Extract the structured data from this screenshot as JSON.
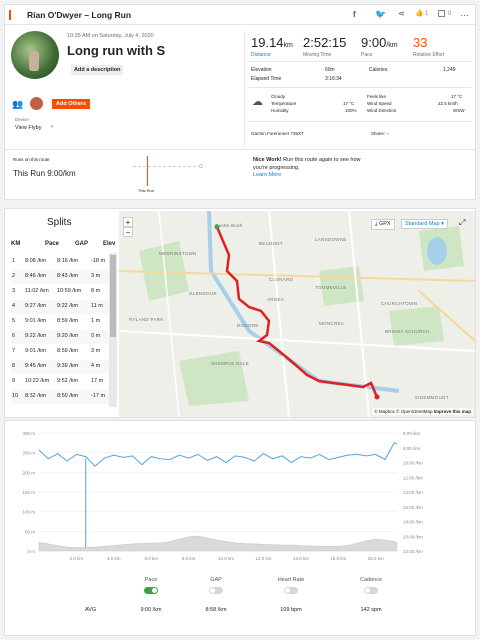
{
  "header": {
    "title": "Rían O'Dwyer – Long Run",
    "kudos_count": "1",
    "comments_count": "0"
  },
  "activity": {
    "date": "10:35 AM on Saturday, July 4, 2020",
    "name": "Long run with S",
    "add_description": "Add a description",
    "add_others": "Add Others",
    "device_label": "Device",
    "view_flyby": "View Flyby",
    "distance": "19.14",
    "distance_unit": "km",
    "distance_label": "Distance",
    "moving_time": "2:52:15",
    "moving_time_label": "Moving Time",
    "pace": "9:00",
    "pace_unit": "/km",
    "pace_label": "Pace",
    "relative_effort": "33",
    "relative_effort_label": "Relative Effort",
    "elevation_label": "Elevation",
    "elevation": "60m",
    "calories_label": "Calories",
    "calories": "1,249",
    "elapsed_label": "Elapsed Time",
    "elapsed": "3:16:34",
    "weather": "Cloudy",
    "temperature_label": "Temperature",
    "temperature": "17 °C",
    "humidity_label": "Humidity",
    "humidity": "100%",
    "feels_like_label": "Feels like",
    "feels_like": "17 °C",
    "wind_speed_label": "Wind Speed",
    "wind_speed": "22.5 km/h",
    "wind_dir_label": "Wind Direction",
    "wind_dir": "WSW",
    "device": "Garmin Forerunner 735XT",
    "shoes": "Shoes: --"
  },
  "route": {
    "runs_label": "Runs on this route",
    "this_run": "This Run 9:00/km",
    "bar_label": "This Run",
    "msg_bold": "Nice Work!",
    "msg": " Run this route again to see how you're progressing.",
    "learn_more": "Learn More"
  },
  "splits": {
    "title": "Splits",
    "headers": [
      "KM",
      "Pace",
      "GAP",
      "Elev"
    ],
    "rows": [
      {
        "km": "1",
        "pace": "8:08",
        "gap": "8:16",
        "elev": "-18 m"
      },
      {
        "km": "2",
        "pace": "8:46",
        "gap": "8:43",
        "elev": "3 m"
      },
      {
        "km": "3",
        "pace": "11:02",
        "gap": "10:59",
        "elev": "8 m"
      },
      {
        "km": "4",
        "pace": "9:27",
        "gap": "9:22",
        "elev": "11 m"
      },
      {
        "km": "5",
        "pace": "9:01",
        "gap": "8:59",
        "elev": "1 m"
      },
      {
        "km": "6",
        "pace": "9:22",
        "gap": "9:20",
        "elev": "0 m"
      },
      {
        "km": "7",
        "pace": "9:01",
        "gap": "8:59",
        "elev": "3 m"
      },
      {
        "km": "8",
        "pace": "9:45",
        "gap": "9:39",
        "elev": "4 m"
      },
      {
        "km": "9",
        "pace": "10:22",
        "gap": "9:52",
        "elev": "17 m"
      },
      {
        "km": "10",
        "pace": "8:32",
        "gap": "8:50",
        "elev": "-17 m"
      }
    ]
  },
  "map": {
    "gpx": "GPX",
    "style": "Standard Map",
    "zoom_in": "+",
    "zoom_out": "−",
    "labels": [
      "Castle Bush",
      "MERRINSTOWN",
      "GLENDOUR",
      "BELMONT",
      "LANSDOWNE",
      "CLONARD",
      "ARDEA",
      "TOOMEVILLE",
      "DONORE",
      "MONCREA",
      "BRINNA SCHURCH",
      "CHURCHTOWN",
      "SHEMPLE DALE",
      "RYLAND PARK",
      "SIDEMMOUNT"
    ],
    "attribution": "© Mapbox © OpenStreetMap",
    "improve": "Improve this map"
  },
  "chart_data": {
    "type": "line",
    "x": [
      0,
      0.5,
      1,
      1.5,
      2,
      2.5,
      3,
      3.5,
      4,
      4.5,
      5,
      5.5,
      6,
      6.5,
      7,
      7.5,
      8,
      8.5,
      9,
      9.5,
      10,
      10.5,
      11,
      11.5,
      12,
      12.5,
      13,
      13.5,
      14,
      14.5,
      15,
      15.5,
      16,
      16.5,
      17,
      17.5,
      18,
      18.5,
      19,
      19.14
    ],
    "series": [
      {
        "name": "Pace",
        "values": [
          8.3,
          9.5,
          8.8,
          9.8,
          8.9,
          9.2,
          10.5,
          9.4,
          9.0,
          9.3,
          9.1,
          10.3,
          9.2,
          9.5,
          9.6,
          9.0,
          9.4,
          8.9,
          9.7,
          9.2,
          10.0,
          9.1,
          9.3,
          9.8,
          8.8,
          9.5,
          9.1,
          10.0,
          9.2,
          9.4,
          8.9,
          9.6,
          9.3,
          9.0,
          8.9,
          9.1,
          8.9,
          9.6,
          7.3,
          7.5
        ]
      },
      {
        "name": "Elevation",
        "values": [
          22,
          18,
          14,
          10,
          9,
          9,
          10,
          12,
          14,
          16,
          18,
          19,
          20,
          21,
          24,
          30,
          36,
          38,
          33,
          28,
          24,
          21,
          19,
          18,
          17,
          16,
          15,
          15,
          14,
          13,
          12,
          12,
          12,
          14,
          20,
          26,
          30,
          28,
          24,
          22
        ]
      }
    ],
    "x_ticks": [
      "2.0 km",
      "4.0 km",
      "6.0 km",
      "8.0 km",
      "10.0 km",
      "12.0 km",
      "14.0 km",
      "16.0 km",
      "18.0 km"
    ],
    "left_ticks": [
      "300 m",
      "250 m",
      "200 m",
      "150 m",
      "100 m",
      "50 m",
      "0 m"
    ],
    "right_ticks": [
      "6:00 /km",
      "8:00 /km",
      "10:00 /km",
      "12:00 /km",
      "14:00 /km",
      "16:00 /km",
      "18:00 /km",
      "20:00 /km",
      "22:00 /km"
    ],
    "colors": {
      "pace": "#4fa6d6",
      "elevation": "#d9d9d9"
    }
  },
  "stats": {
    "avg_label": "AVG",
    "items": [
      {
        "name": "Pace",
        "avg": "9:00 /km",
        "on": true
      },
      {
        "name": "GAP",
        "avg": "8:58 /km",
        "on": false
      },
      {
        "name": "Heart Rate",
        "avg": "109 bpm",
        "on": false
      },
      {
        "name": "Cadence",
        "avg": "142 spm",
        "on": false
      }
    ]
  }
}
